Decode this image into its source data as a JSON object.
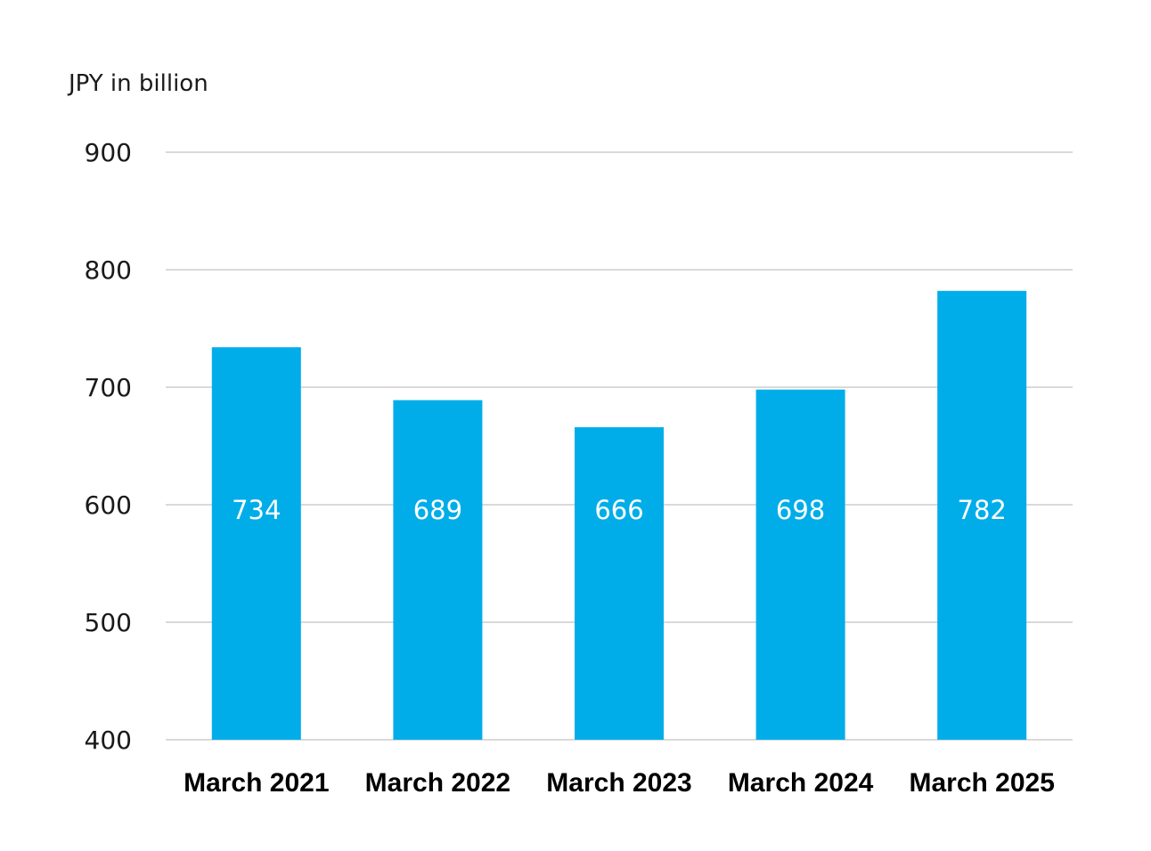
{
  "chart_data": {
    "type": "bar",
    "title": "",
    "xlabel": "",
    "ylabel": "JPY in billion",
    "categories": [
      "March 2021",
      "March 2022",
      "March 2023",
      "March 2024",
      "March 2025"
    ],
    "values": [
      734,
      689,
      666,
      698,
      782
    ],
    "data_labels": [
      "734",
      "689",
      "666",
      "698",
      "782"
    ],
    "ylim": [
      400,
      900
    ],
    "yticks": [
      400,
      500,
      600,
      700,
      800,
      900
    ],
    "ytick_labels": [
      "400",
      "500",
      "600",
      "700",
      "800",
      "900"
    ],
    "grid": true,
    "legend": "none",
    "bar_color": "#00ADE9",
    "label_color": "#FFFFFF"
  }
}
